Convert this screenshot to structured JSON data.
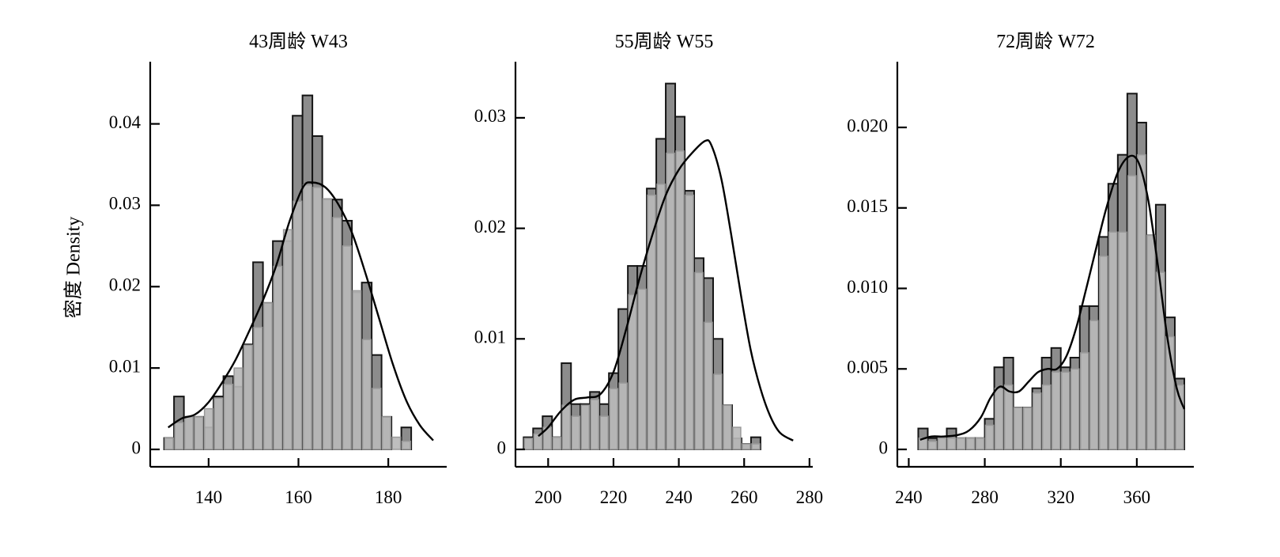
{
  "figure": {
    "ylabel": "密度 Density"
  },
  "chart_data": [
    {
      "type": "bar",
      "title": "43周龄 W43",
      "xlabel": "",
      "ylabel": "密度 Density",
      "xlim": [
        127,
        193
      ],
      "ylim": [
        0,
        0.0455
      ],
      "xticks": [
        "140",
        "160",
        "180"
      ],
      "xtick_values": [
        140,
        160,
        180
      ],
      "yticks": [
        "0",
        "0.01",
        "0.02",
        "0.03",
        "0.04"
      ],
      "ytick_values": [
        0,
        0.01,
        0.02,
        0.03,
        0.04
      ],
      "bin_start": 130.1,
      "bin_width": 2.2,
      "histogram": [
        0.0014,
        0.0065,
        0.004,
        0.004,
        0.0027,
        0.0065,
        0.009,
        0.0077,
        0.0129,
        0.023,
        0.018,
        0.0256,
        0.0256,
        0.041,
        0.0435,
        0.0385,
        0.0307,
        0.0307,
        0.0281,
        0.0193,
        0.0205,
        0.0116,
        0.004,
        0,
        0.0027
      ],
      "kde_bars": [
        0.0014,
        0.0033,
        0.004,
        0.004,
        0.005,
        0.0063,
        0.008,
        0.01,
        0.0128,
        0.015,
        0.018,
        0.0225,
        0.027,
        0.0305,
        0.0325,
        0.0322,
        0.0308,
        0.0285,
        0.025,
        0.0195,
        0.0135,
        0.0075,
        0.004,
        0.0015,
        0.001
      ],
      "kde_curve": [
        [
          131,
          0.0027
        ],
        [
          134,
          0.0038
        ],
        [
          137,
          0.0043
        ],
        [
          140,
          0.0058
        ],
        [
          143,
          0.0082
        ],
        [
          146,
          0.011
        ],
        [
          149,
          0.0145
        ],
        [
          152,
          0.0182
        ],
        [
          155,
          0.0225
        ],
        [
          158,
          0.028
        ],
        [
          161,
          0.0322
        ],
        [
          163,
          0.0328
        ],
        [
          166,
          0.0322
        ],
        [
          169,
          0.03
        ],
        [
          172,
          0.0265
        ],
        [
          175,
          0.0215
        ],
        [
          178,
          0.016
        ],
        [
          181,
          0.0105
        ],
        [
          184,
          0.006
        ],
        [
          187,
          0.003
        ],
        [
          190,
          0.0011
        ]
      ]
    },
    {
      "type": "bar",
      "title": "55周龄 W55",
      "xlabel": "",
      "ylabel": "",
      "xlim": [
        190,
        281
      ],
      "ylim": [
        0,
        0.0335
      ],
      "xticks": [
        "200",
        "220",
        "240",
        "260",
        "280"
      ],
      "xtick_values": [
        200,
        220,
        240,
        260,
        280
      ],
      "yticks": [
        "0",
        "0.01",
        "0.02",
        "0.03"
      ],
      "ytick_values": [
        0,
        0.01,
        0.02,
        0.03
      ],
      "bin_start": 192.5,
      "bin_width": 2.9,
      "histogram": [
        0.0011,
        0.0019,
        0.003,
        0.0011,
        0.0078,
        0.0041,
        0.0041,
        0.0052,
        0.0041,
        0.0069,
        0.0127,
        0.0166,
        0.0166,
        0.0236,
        0.0281,
        0.0331,
        0.0301,
        0.0234,
        0.0173,
        0.0155,
        0.01,
        0.004,
        0.001,
        0.0005,
        0.0011
      ],
      "kde_bars": [
        0.001,
        0.0014,
        0.002,
        0.0011,
        0.004,
        0.003,
        0.004,
        0.0045,
        0.003,
        0.0055,
        0.006,
        0.014,
        0.0145,
        0.023,
        0.024,
        0.0268,
        0.027,
        0.023,
        0.016,
        0.0115,
        0.0068,
        0.004,
        0.002,
        0.0005,
        0.0005
      ],
      "kde_curve": [
        [
          197,
          0.0012
        ],
        [
          200,
          0.002
        ],
        [
          204,
          0.0035
        ],
        [
          208,
          0.0045
        ],
        [
          212,
          0.0047
        ],
        [
          216,
          0.005
        ],
        [
          220,
          0.007
        ],
        [
          224,
          0.011
        ],
        [
          228,
          0.0155
        ],
        [
          232,
          0.0195
        ],
        [
          236,
          0.023
        ],
        [
          240,
          0.0253
        ],
        [
          244,
          0.0268
        ],
        [
          248,
          0.0279
        ],
        [
          250,
          0.0275
        ],
        [
          253,
          0.0245
        ],
        [
          256,
          0.0195
        ],
        [
          259,
          0.014
        ],
        [
          262,
          0.009
        ],
        [
          265,
          0.0055
        ],
        [
          268,
          0.003
        ],
        [
          271,
          0.0015
        ],
        [
          275,
          0.0008
        ]
      ]
    },
    {
      "type": "bar",
      "title": "72周龄 W72",
      "xlabel": "",
      "ylabel": "",
      "xlim": [
        234,
        390
      ],
      "ylim": [
        0,
        0.023
      ],
      "xticks": [
        "240",
        "280",
        "320",
        "360"
      ],
      "xtick_values": [
        240,
        280,
        320,
        360
      ],
      "yticks": [
        "0",
        "0.005",
        "0.010",
        "0.015",
        "0.020"
      ],
      "ytick_values": [
        0,
        0.005,
        0.01,
        0.015,
        0.02
      ],
      "bin_start": 245,
      "bin_width": 5,
      "histogram": [
        0.0013,
        0.0007,
        0.0007,
        0.0013,
        0.0007,
        0.0007,
        0.0007,
        0.0019,
        0.0051,
        0.0057,
        0.0026,
        0.0026,
        0.0038,
        0.0057,
        0.0063,
        0.0051,
        0.0057,
        0.0089,
        0.0089,
        0.0132,
        0.0165,
        0.0183,
        0.0221,
        0.0203,
        0.0133,
        0.0152,
        0.0082,
        0.0044
      ],
      "kde_bars": [
        0.0007,
        0.0005,
        0.0007,
        0.0007,
        0.0007,
        0.0007,
        0.0007,
        0.0015,
        0.0038,
        0.004,
        0.0026,
        0.0026,
        0.0035,
        0.004,
        0.0048,
        0.0048,
        0.005,
        0.006,
        0.008,
        0.012,
        0.0135,
        0.0135,
        0.017,
        0.0183,
        0.0133,
        0.011,
        0.007,
        0.004
      ],
      "kde_curve": [
        [
          246,
          0.0006
        ],
        [
          252,
          0.0008
        ],
        [
          258,
          0.0008
        ],
        [
          266,
          0.0009
        ],
        [
          272,
          0.0012
        ],
        [
          278,
          0.002
        ],
        [
          283,
          0.0032
        ],
        [
          288,
          0.0039
        ],
        [
          293,
          0.0036
        ],
        [
          298,
          0.0036
        ],
        [
          303,
          0.0042
        ],
        [
          308,
          0.0048
        ],
        [
          313,
          0.005
        ],
        [
          318,
          0.005
        ],
        [
          323,
          0.0058
        ],
        [
          328,
          0.0075
        ],
        [
          333,
          0.0098
        ],
        [
          338,
          0.0122
        ],
        [
          344,
          0.015
        ],
        [
          350,
          0.0172
        ],
        [
          356,
          0.0182
        ],
        [
          361,
          0.0178
        ],
        [
          366,
          0.0155
        ],
        [
          371,
          0.0115
        ],
        [
          376,
          0.007
        ],
        [
          381,
          0.0038
        ],
        [
          385,
          0.0025
        ]
      ]
    }
  ]
}
